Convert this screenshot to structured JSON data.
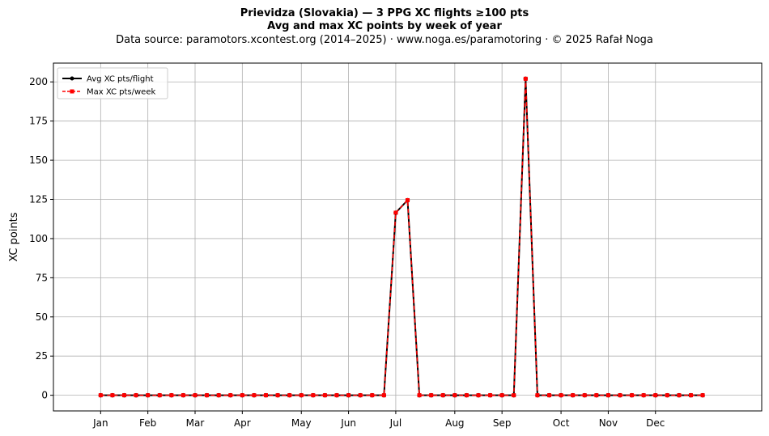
{
  "chart_data": {
    "type": "line",
    "title": "Prievidza (Slovakia)  —  3 PPG XC flights ≥100 pts",
    "title_line2": "Avg and max XC points by week of year",
    "subtitle": "Data source: paramotors.xcontest.org (2014–2025)  ·  www.noga.es/paramotoring  ·  © 2025 Rafał Noga",
    "ylabel": "XC points",
    "xlim": [
      -3,
      57
    ],
    "ylim": [
      -10,
      212
    ],
    "yticks": [
      0,
      25,
      50,
      75,
      100,
      125,
      150,
      175,
      200
    ],
    "xticks": [
      {
        "label": "Jan",
        "week": 1
      },
      {
        "label": "Feb",
        "week": 5
      },
      {
        "label": "Mar",
        "week": 9
      },
      {
        "label": "Apr",
        "week": 13
      },
      {
        "label": "May",
        "week": 18
      },
      {
        "label": "Jun",
        "week": 22
      },
      {
        "label": "Jul",
        "week": 26
      },
      {
        "label": "Aug",
        "week": 31
      },
      {
        "label": "Sep",
        "week": 35
      },
      {
        "label": "Oct",
        "week": 40
      },
      {
        "label": "Nov",
        "week": 44
      },
      {
        "label": "Dec",
        "week": 48
      }
    ],
    "grid": true,
    "legend_position": "top-left",
    "x": [
      1,
      2,
      3,
      4,
      5,
      6,
      7,
      8,
      9,
      10,
      11,
      12,
      13,
      14,
      15,
      16,
      17,
      18,
      19,
      20,
      21,
      22,
      23,
      24,
      25,
      26,
      27,
      28,
      29,
      30,
      31,
      32,
      33,
      34,
      35,
      36,
      37,
      38,
      39,
      40,
      41,
      42,
      43,
      44,
      45,
      46,
      47,
      48,
      49,
      50,
      51,
      52
    ],
    "series": [
      {
        "name": "Avg XC pts/flight",
        "color": "#000000",
        "style": "solid-circle",
        "values": [
          0,
          0,
          0,
          0,
          0,
          0,
          0,
          0,
          0,
          0,
          0,
          0,
          0,
          0,
          0,
          0,
          0,
          0,
          0,
          0,
          0,
          0,
          0,
          0,
          0,
          116.5,
          124.5,
          0,
          0,
          0,
          0,
          0,
          0,
          0,
          0,
          0,
          202,
          0,
          0,
          0,
          0,
          0,
          0,
          0,
          0,
          0,
          0,
          0,
          0,
          0,
          0,
          0
        ]
      },
      {
        "name": "Max XC pts/week",
        "color": "#ff0000",
        "style": "dashed-square",
        "values": [
          0,
          0,
          0,
          0,
          0,
          0,
          0,
          0,
          0,
          0,
          0,
          0,
          0,
          0,
          0,
          0,
          0,
          0,
          0,
          0,
          0,
          0,
          0,
          0,
          0,
          116.5,
          124.5,
          0,
          0,
          0,
          0,
          0,
          0,
          0,
          0,
          0,
          202,
          0,
          0,
          0,
          0,
          0,
          0,
          0,
          0,
          0,
          0,
          0,
          0,
          0,
          0,
          0
        ]
      }
    ]
  }
}
